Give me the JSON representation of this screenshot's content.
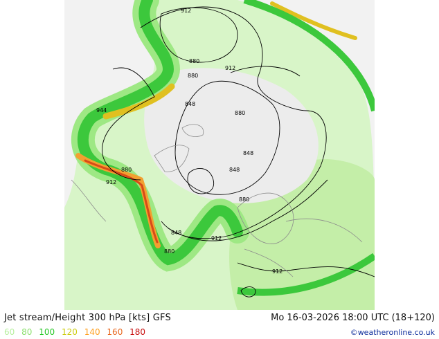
{
  "title": "Jet stream/Height 300 hPa [kts] GFS",
  "timestamp": "Mo 16-03-2026 18:00 UTC (18+120)",
  "credit": "©weatheronline.co.uk",
  "legend": [
    {
      "label": "60",
      "color": "#b8f0a0"
    },
    {
      "label": "80",
      "color": "#8ee070"
    },
    {
      "label": "100",
      "color": "#28c828"
    },
    {
      "label": "120",
      "color": "#cccc10"
    },
    {
      "label": "140",
      "color": "#ffa020"
    },
    {
      "label": "160",
      "color": "#e86820"
    },
    {
      "label": "180",
      "color": "#c81010"
    }
  ],
  "contour_labels": [
    "912",
    "880",
    "880",
    "912",
    "848",
    "880",
    "944",
    "848",
    "880",
    "848",
    "912",
    "880",
    "848",
    "912",
    "880",
    "912"
  ]
}
